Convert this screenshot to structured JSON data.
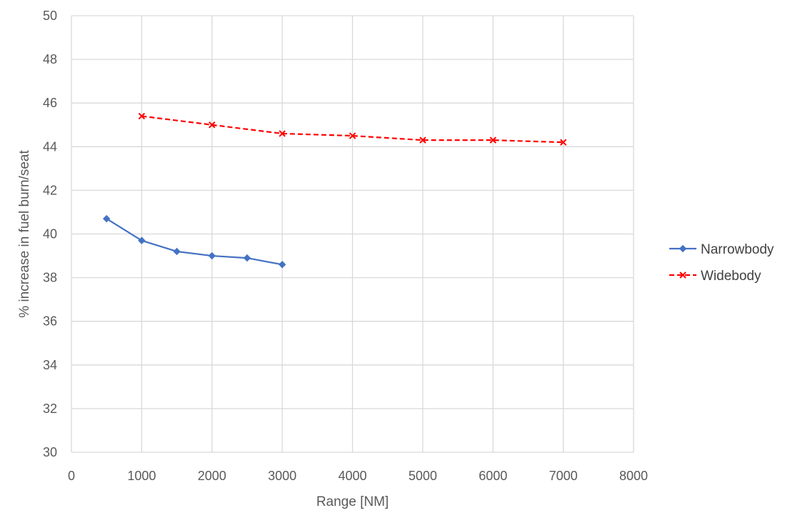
{
  "chart_data": {
    "type": "line",
    "title": "",
    "xlabel": "Range [NM]",
    "ylabel": "% increase in fuel burn/seat",
    "xlim": [
      0,
      8000
    ],
    "ylim": [
      30,
      50
    ],
    "xticks": [
      0,
      1000,
      2000,
      3000,
      4000,
      5000,
      6000,
      7000,
      8000
    ],
    "yticks": [
      30,
      32,
      34,
      36,
      38,
      40,
      42,
      44,
      46,
      48,
      50
    ],
    "grid": true,
    "legend_position": "right",
    "series": [
      {
        "name": "Narrowbody",
        "color": "#4472c4",
        "line_style": "solid",
        "marker": "diamond",
        "x": [
          500,
          1000,
          1500,
          2000,
          2500,
          3000
        ],
        "y": [
          40.7,
          39.7,
          39.2,
          39.0,
          38.9,
          38.6
        ]
      },
      {
        "name": "Widebody",
        "color": "#ff0000",
        "line_style": "dashed",
        "marker": "x",
        "x": [
          1000,
          2000,
          3000,
          4000,
          5000,
          6000,
          7000
        ],
        "y": [
          45.4,
          45.0,
          44.6,
          44.5,
          44.3,
          44.3,
          44.2
        ]
      }
    ]
  }
}
